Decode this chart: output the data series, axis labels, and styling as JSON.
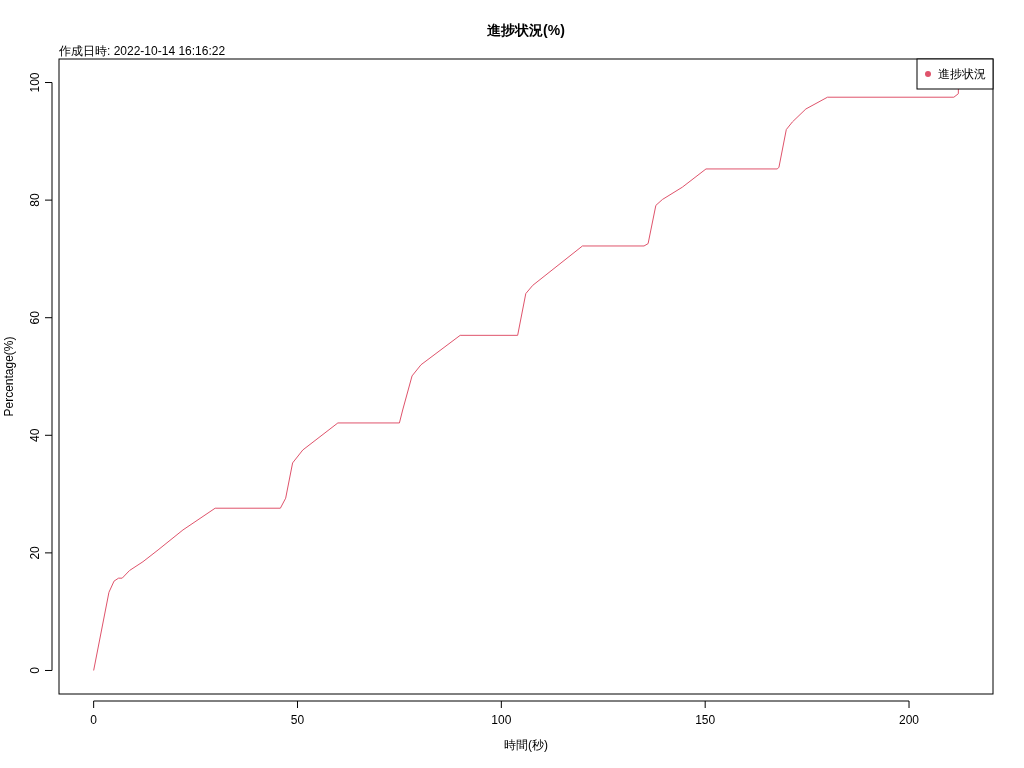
{
  "chart_data": {
    "type": "line",
    "title": "進捗状況(%)",
    "xlabel": "時間(秒)",
    "ylabel": "Percentage(%)",
    "annotations": [
      "作成日時: 2022-10-14 16:16:22"
    ],
    "xlim": [
      -8.5,
      220.6
    ],
    "ylim": [
      -4,
      104
    ],
    "xticks": [
      0,
      50,
      100,
      150,
      200
    ],
    "yticks": [
      0,
      20,
      40,
      60,
      80,
      100
    ],
    "grid": false,
    "legend": "top right",
    "marker": "none",
    "line_style": "solid",
    "x": [
      0,
      3.75,
      5.0,
      6.1,
      7.0,
      8.8,
      12.1,
      15.8,
      21.9,
      29.8,
      45.8,
      47.1,
      48.8,
      51.3,
      59.9,
      75.0,
      75.8,
      78.1,
      80.3,
      89.9,
      104.0,
      106.0,
      107.7,
      119.9,
      135.0,
      136.0,
      137.9,
      139.5,
      144.4,
      150.2,
      167.7,
      168.1,
      169.9,
      171.4,
      174.7,
      180.0,
      211.0,
      212.1,
      212.1
    ],
    "series": [
      {
        "name": "進捗状況",
        "color": "#df536b",
        "values": [
          0,
          13.3,
          15.2,
          15.7,
          15.7,
          17.0,
          18.5,
          20.5,
          23.9,
          27.6,
          27.6,
          29.3,
          35.3,
          37.5,
          42.1,
          42.1,
          44.3,
          50.1,
          52.0,
          57.0,
          57.0,
          64.1,
          65.5,
          72.2,
          72.2,
          72.6,
          79.1,
          80.1,
          82.2,
          85.3,
          85.3,
          85.6,
          92.0,
          93.3,
          95.5,
          97.5,
          97.5,
          98.1,
          98.9
        ]
      }
    ]
  }
}
